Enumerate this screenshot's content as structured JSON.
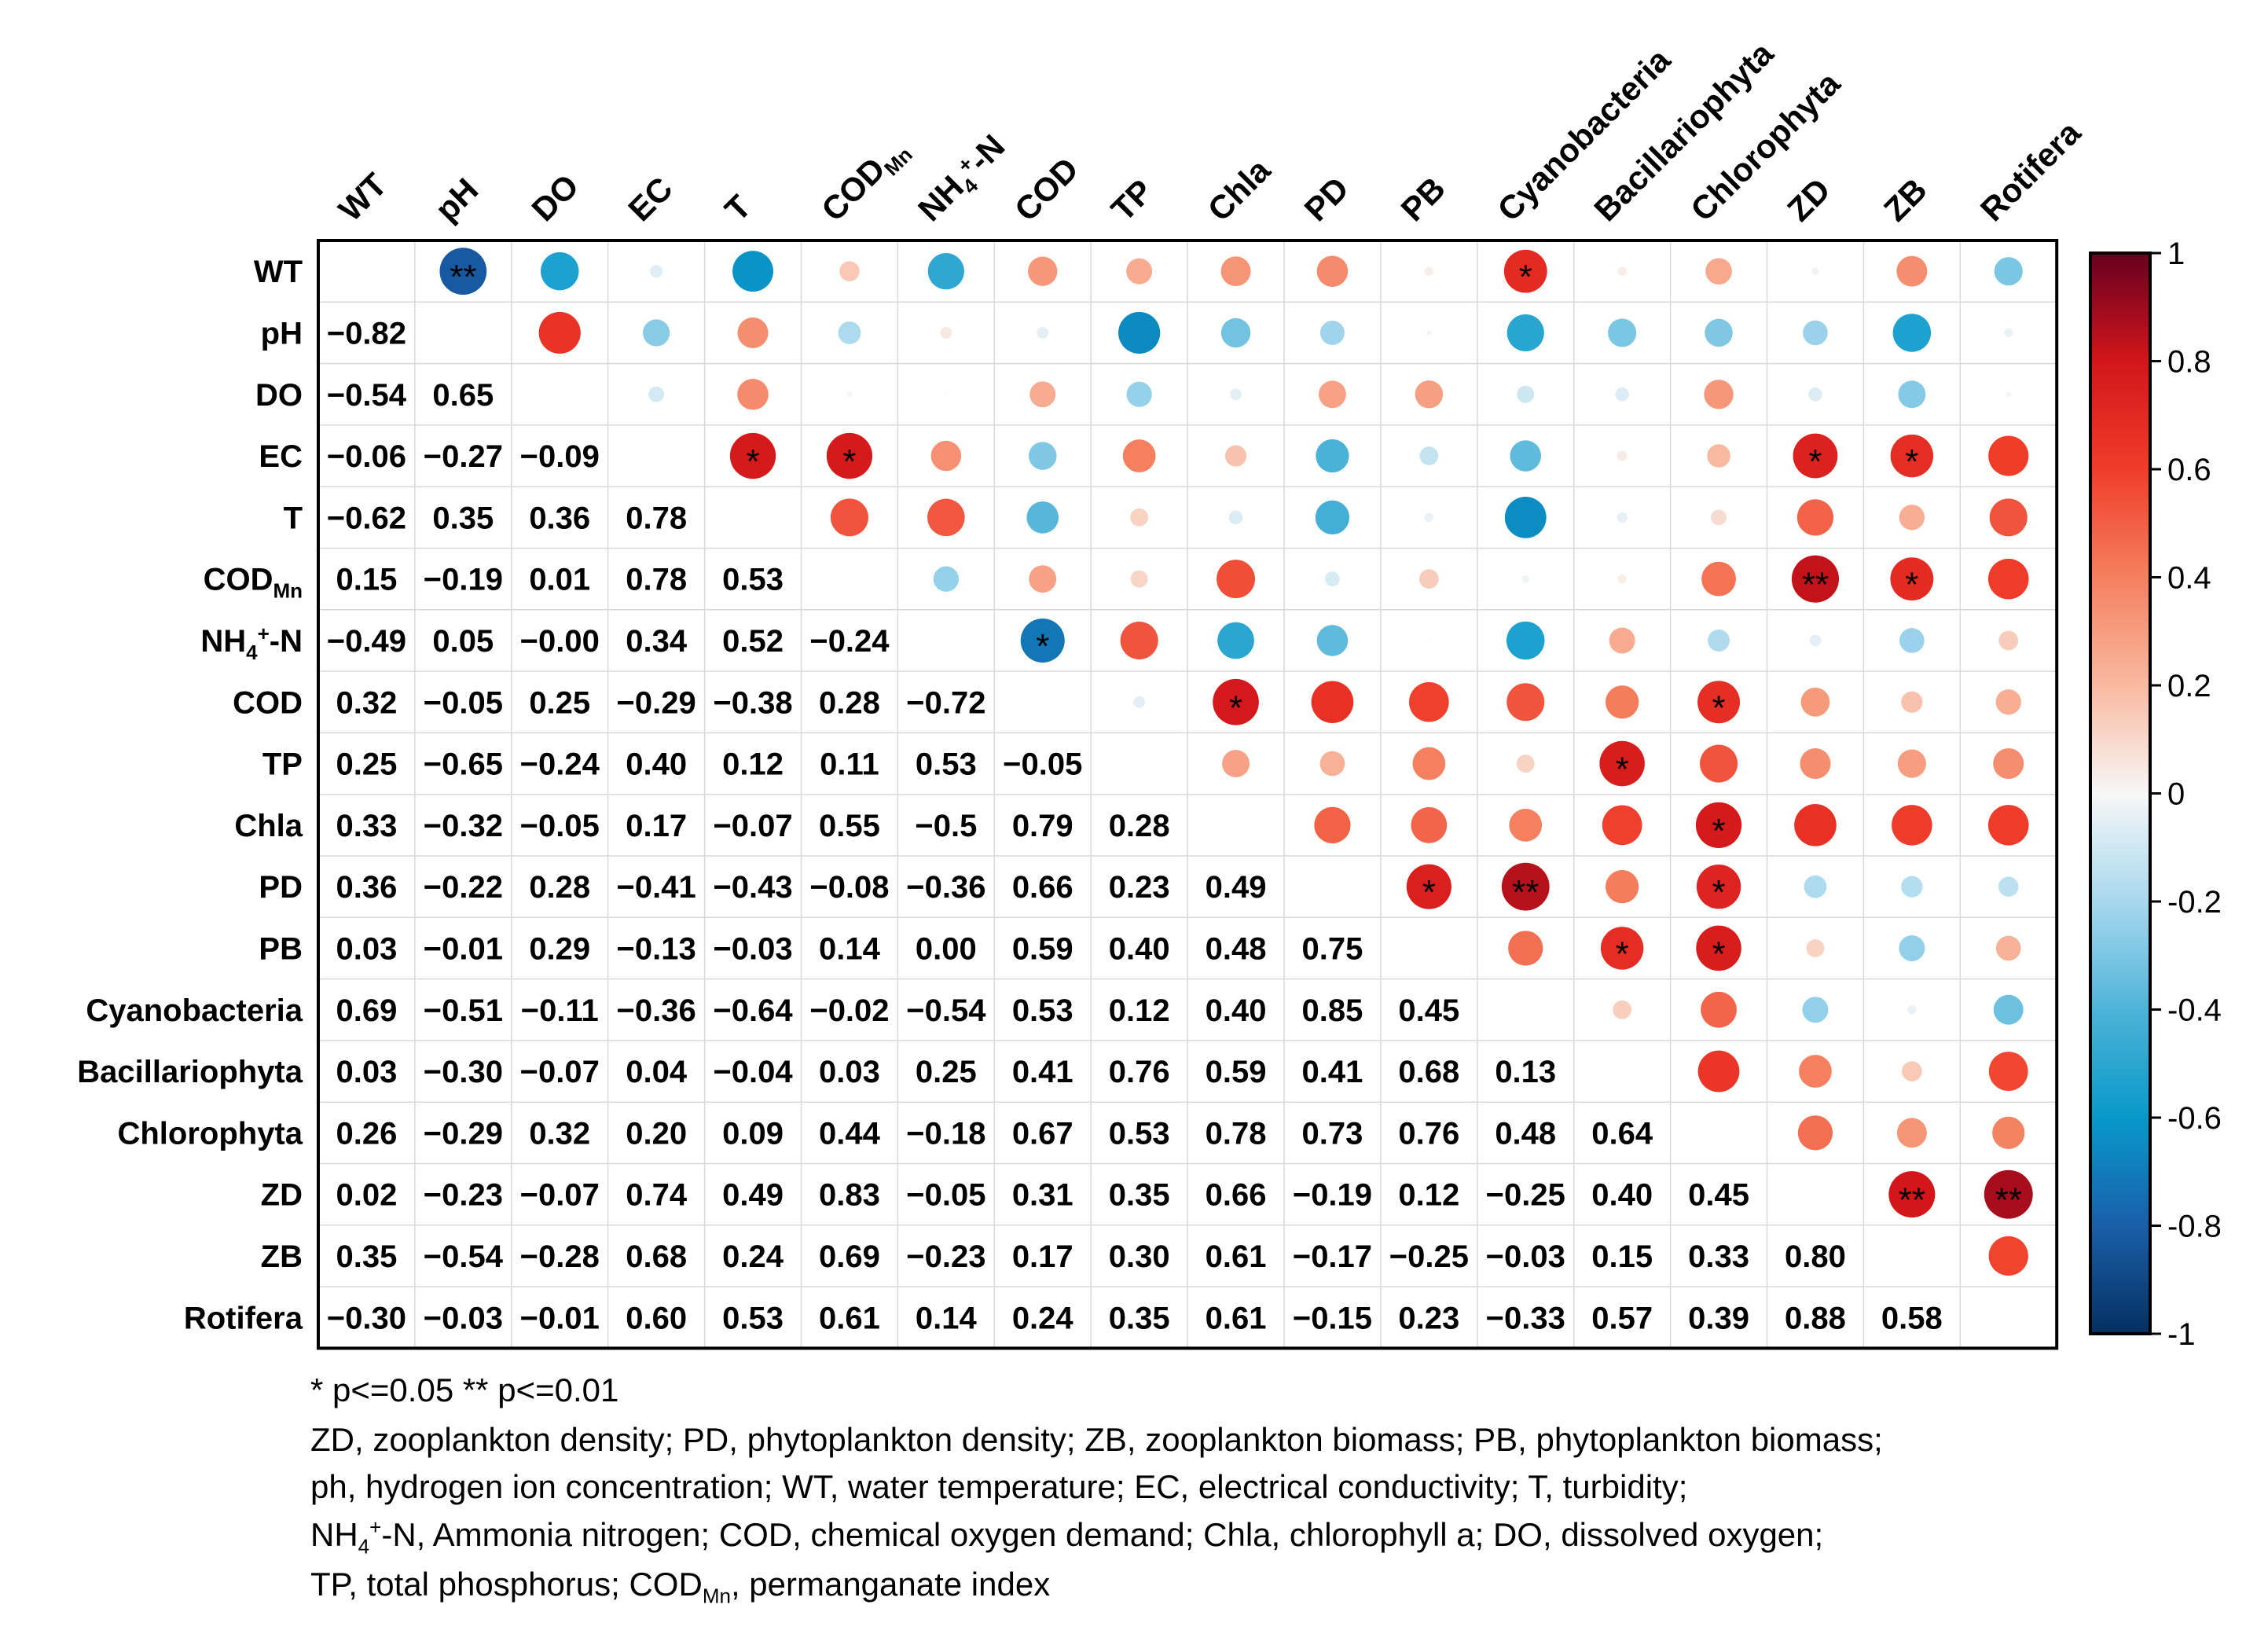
{
  "chart_data": {
    "type": "heatmap",
    "subtype": "correlation-matrix",
    "variables": [
      "WT",
      "pH",
      "DO",
      "EC",
      "T",
      "COD_Mn",
      "NH4+-N",
      "COD",
      "TP",
      "Chla",
      "PD",
      "PB",
      "Cyanobacteria",
      "Bacillariophyta",
      "Chlorophyta",
      "ZD",
      "ZB",
      "Rotifera"
    ],
    "display_labels": [
      {
        "main": "WT"
      },
      {
        "main": "pH"
      },
      {
        "main": "DO"
      },
      {
        "main": "EC"
      },
      {
        "main": "T"
      },
      {
        "main": "COD",
        "sub": "Mn"
      },
      {
        "main": "NH",
        "sub": "4",
        "sup": "+",
        "suffix": "-N"
      },
      {
        "main": "COD"
      },
      {
        "main": "TP"
      },
      {
        "main": "Chla"
      },
      {
        "main": "PD"
      },
      {
        "main": "PB"
      },
      {
        "main": "Cyanobacteria"
      },
      {
        "main": "Bacillariophyta"
      },
      {
        "main": "Chlorophyta"
      },
      {
        "main": "ZD"
      },
      {
        "main": "ZB"
      },
      {
        "main": "Rotifera"
      }
    ],
    "lower_triangle_labels": [
      [],
      [
        "−0.82"
      ],
      [
        "−0.54",
        "0.65"
      ],
      [
        "−0.06",
        "−0.27",
        "−0.09"
      ],
      [
        "−0.62",
        "0.35",
        "0.36",
        "0.78"
      ],
      [
        "0.15",
        "−0.19",
        "0.01",
        "0.78",
        "0.53"
      ],
      [
        "−0.49",
        "0.05",
        "−0.00",
        "0.34",
        "0.52",
        "−0.24"
      ],
      [
        "0.32",
        "−0.05",
        "0.25",
        "−0.29",
        "−0.38",
        "0.28",
        "−0.72"
      ],
      [
        "0.25",
        "−0.65",
        "−0.24",
        "0.40",
        "0.12",
        "0.11",
        "0.53",
        "−0.05"
      ],
      [
        "0.33",
        "−0.32",
        "−0.05",
        "0.17",
        "−0.07",
        "0.55",
        "−0.5",
        "0.79",
        "0.28"
      ],
      [
        "0.36",
        "−0.22",
        "0.28",
        "−0.41",
        "−0.43",
        "−0.08",
        "−0.36",
        "0.66",
        "0.23",
        "0.49"
      ],
      [
        "0.03",
        "−0.01",
        "0.29",
        "−0.13",
        "−0.03",
        "0.14",
        "0.00",
        "0.59",
        "0.40",
        "0.48",
        "0.75"
      ],
      [
        "0.69",
        "−0.51",
        "−0.11",
        "−0.36",
        "−0.64",
        "−0.02",
        "−0.54",
        "0.53",
        "0.12",
        "0.40",
        "0.85",
        "0.45"
      ],
      [
        "0.03",
        "−0.30",
        "−0.07",
        "0.04",
        "−0.04",
        "0.03",
        "0.25",
        "0.41",
        "0.76",
        "0.59",
        "0.41",
        "0.68",
        "0.13"
      ],
      [
        "0.26",
        "−0.29",
        "0.32",
        "0.20",
        "0.09",
        "0.44",
        "−0.18",
        "0.67",
        "0.53",
        "0.78",
        "0.73",
        "0.76",
        "0.48",
        "0.64"
      ],
      [
        "0.02",
        "−0.23",
        "−0.07",
        "0.74",
        "0.49",
        "0.83",
        "−0.05",
        "0.31",
        "0.35",
        "0.66",
        "−0.19",
        "0.12",
        "−0.25",
        "0.40",
        "0.45"
      ],
      [
        "0.35",
        "−0.54",
        "−0.28",
        "0.68",
        "0.24",
        "0.69",
        "−0.23",
        "0.17",
        "0.30",
        "0.61",
        "−0.17",
        "−0.25",
        "−0.03",
        "0.15",
        "0.33",
        "0.80"
      ],
      [
        "−0.30",
        "−0.03",
        "−0.01",
        "0.60",
        "0.53",
        "0.61",
        "0.14",
        "0.24",
        "0.35",
        "0.61",
        "−0.15",
        "0.23",
        "−0.33",
        "0.57",
        "0.39",
        "0.88",
        "0.58"
      ]
    ],
    "significance": [
      {
        "row": 0,
        "col": 1,
        "mark": "**"
      },
      {
        "row": 0,
        "col": 12,
        "mark": "*"
      },
      {
        "row": 3,
        "col": 4,
        "mark": "*"
      },
      {
        "row": 3,
        "col": 5,
        "mark": "*"
      },
      {
        "row": 3,
        "col": 15,
        "mark": "*"
      },
      {
        "row": 3,
        "col": 16,
        "mark": "*"
      },
      {
        "row": 5,
        "col": 15,
        "mark": "**"
      },
      {
        "row": 5,
        "col": 16,
        "mark": "*"
      },
      {
        "row": 6,
        "col": 7,
        "mark": "*"
      },
      {
        "row": 7,
        "col": 9,
        "mark": "*"
      },
      {
        "row": 7,
        "col": 14,
        "mark": "*"
      },
      {
        "row": 8,
        "col": 13,
        "mark": "*"
      },
      {
        "row": 9,
        "col": 14,
        "mark": "*"
      },
      {
        "row": 10,
        "col": 11,
        "mark": "*"
      },
      {
        "row": 10,
        "col": 12,
        "mark": "**"
      },
      {
        "row": 10,
        "col": 14,
        "mark": "*"
      },
      {
        "row": 11,
        "col": 13,
        "mark": "*"
      },
      {
        "row": 11,
        "col": 14,
        "mark": "*"
      },
      {
        "row": 15,
        "col": 16,
        "mark": "**"
      },
      {
        "row": 15,
        "col": 17,
        "mark": "**"
      }
    ],
    "colorbar": {
      "range": [
        -1,
        1
      ],
      "ticks": [
        1,
        0.8,
        0.6,
        0.4,
        0.2,
        0,
        -0.2,
        -0.4,
        -0.6,
        -0.8,
        -1
      ],
      "tick_labels": [
        "1",
        "0.8",
        "0.6",
        "0.4",
        "0.2",
        "0",
        "-0.2",
        "-0.4",
        "-0.6",
        "-0.8",
        "-1"
      ],
      "stops": [
        {
          "v": -1.0,
          "color": "#053061"
        },
        {
          "v": -0.8,
          "color": "#1a5fa8"
        },
        {
          "v": -0.6,
          "color": "#0899c9"
        },
        {
          "v": -0.4,
          "color": "#4eb3d8"
        },
        {
          "v": -0.2,
          "color": "#a8d8ee"
        },
        {
          "v": 0.0,
          "color": "#f7f7f7"
        },
        {
          "v": 0.2,
          "color": "#f9b9a0"
        },
        {
          "v": 0.4,
          "color": "#f4805f"
        },
        {
          "v": 0.6,
          "color": "#f03d2a"
        },
        {
          "v": 0.8,
          "color": "#d2161a"
        },
        {
          "v": 1.0,
          "color": "#67001f"
        }
      ]
    }
  },
  "notes": {
    "significance_legend": "* p<=0.05  ** p<=0.01",
    "line1": "ZD, zooplankton density; PD, phytoplankton density; ZB, zooplankton biomass; PB, phytoplankton biomass;",
    "line2": "ph, hydrogen ion concentration; WT, water temperature; EC, electrical conductivity; T, turbidity;",
    "line3_nh": "NH",
    "line3_sub": "4",
    "line3_sup": "+",
    "line3_rest": "-N, Ammonia nitrogen; COD, chemical oxygen demand; Chla, chlorophyll a; DO, dissolved oxygen;",
    "line4_pre": "TP, total phosphorus; COD",
    "line4_sub": "Mn",
    "line4_rest": ", permanganate index"
  }
}
